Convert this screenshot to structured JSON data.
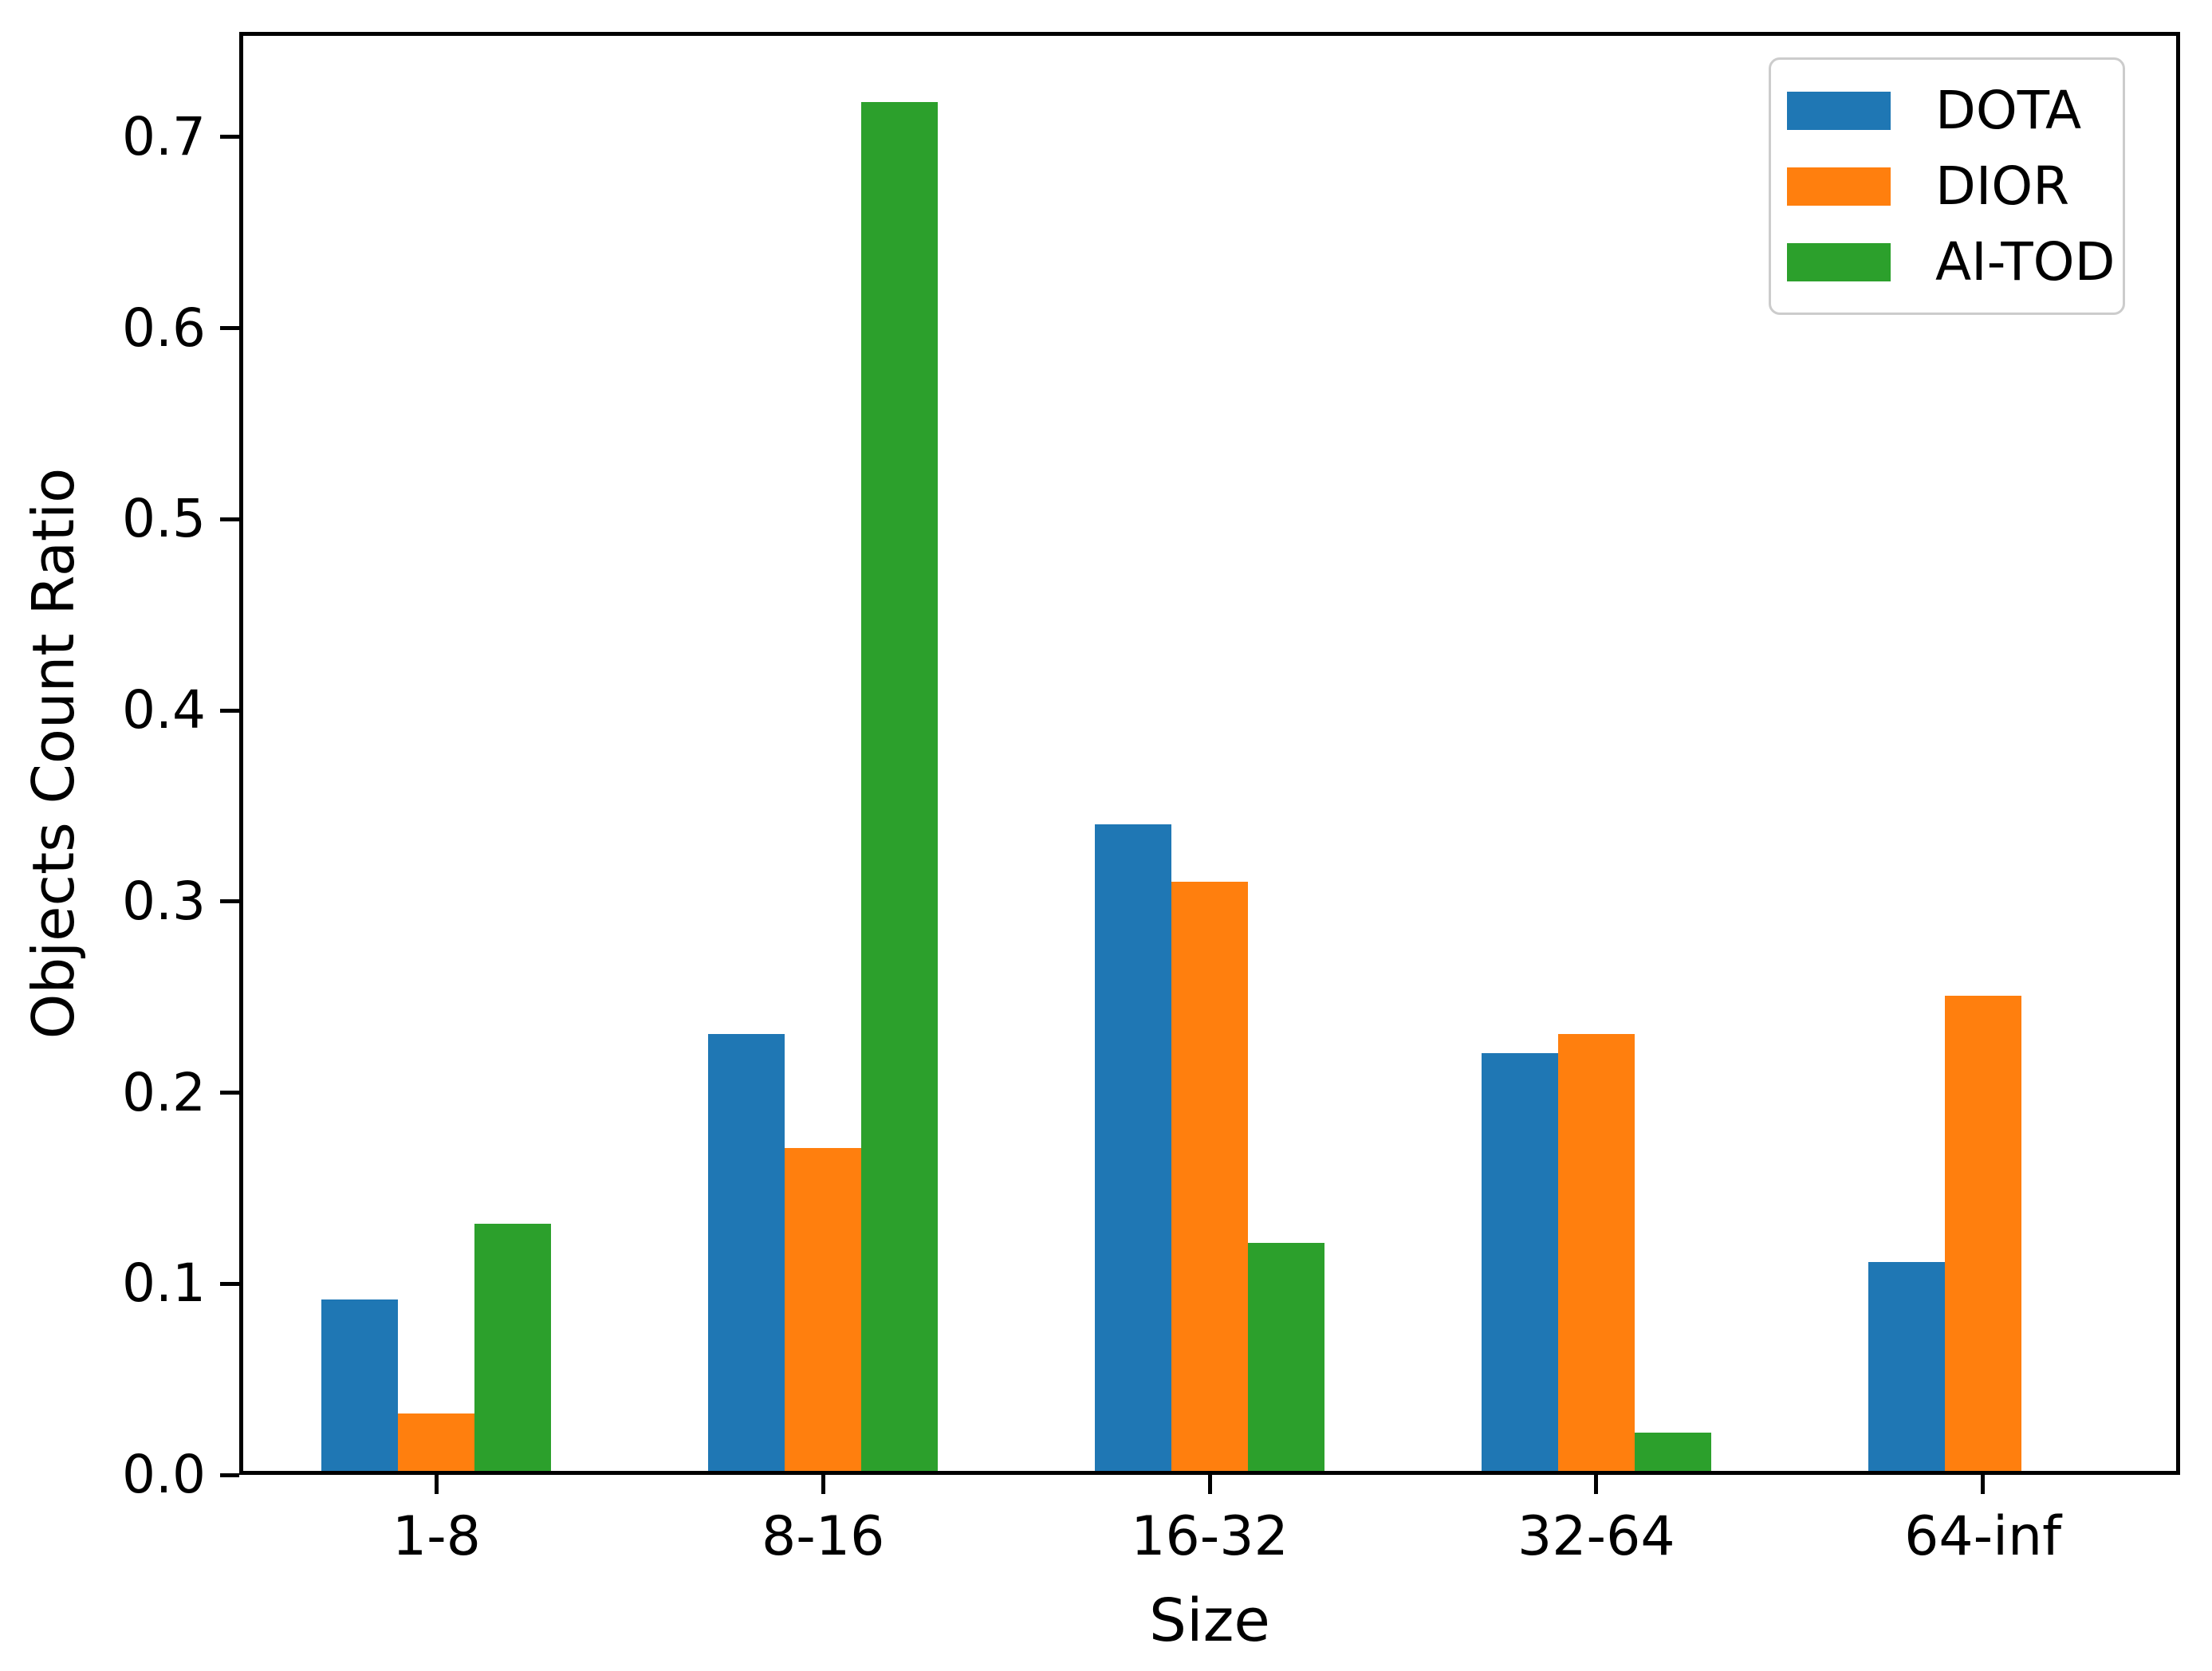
{
  "figure": {
    "background_color": "#ffffff",
    "axis_color": "#000000",
    "legend_border_color": "#cccccc"
  },
  "chart_data": {
    "type": "bar",
    "title": "",
    "xlabel": "Size",
    "ylabel": "Objects Count Ratio",
    "categories": [
      "1-8",
      "8-16",
      "16-32",
      "32-64",
      "64-inf"
    ],
    "series": [
      {
        "name": "DOTA",
        "color": "#1f77b4",
        "values": [
          0.09,
          0.23,
          0.34,
          0.22,
          0.11
        ]
      },
      {
        "name": "DIOR",
        "color": "#ff7f0e",
        "values": [
          0.03,
          0.17,
          0.31,
          0.23,
          0.25
        ]
      },
      {
        "name": "AI-TOD",
        "color": "#2ca02c",
        "values": [
          0.13,
          0.72,
          0.12,
          0.02,
          0.0
        ]
      }
    ],
    "yticks": [
      "0.0",
      "0.1",
      "0.2",
      "0.3",
      "0.4",
      "0.5",
      "0.6",
      "0.7"
    ],
    "ylim": [
      0,
      0.755
    ],
    "grid": false,
    "legend_position": "upper right"
  }
}
